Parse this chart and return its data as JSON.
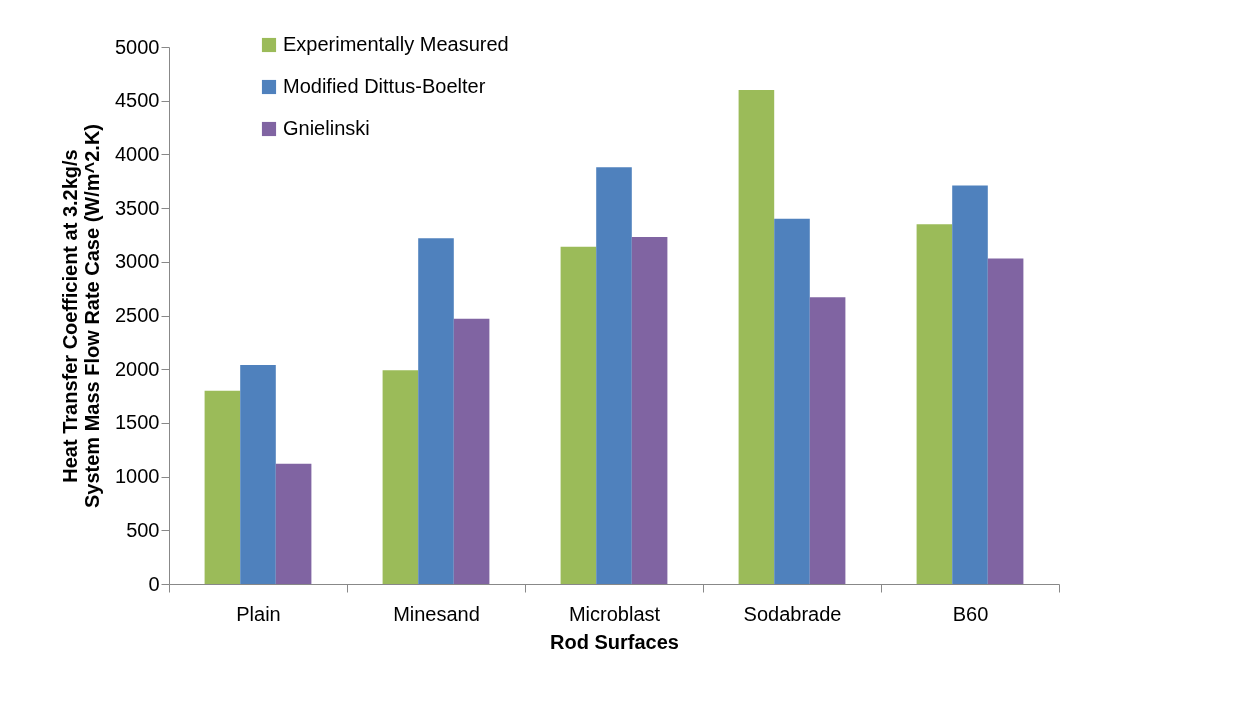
{
  "chart_data": {
    "type": "bar",
    "xlabel": "Rod Surfaces",
    "ylabel": "Heat Transfer Coefficient at 3.2kg/s\nSystem Mass Flow Rate Case (W/m^2.K)",
    "categories": [
      "Plain",
      "Minesand",
      "Microblast",
      "Sodabrade",
      "B60"
    ],
    "series": [
      {
        "name": "Experimentally Measured",
        "color": "#9bbb59",
        "values": [
          1800,
          1990,
          3140,
          4600,
          3350
        ]
      },
      {
        "name": "Modified Dittus-Boelter",
        "color": "#4f81bd",
        "values": [
          2040,
          3220,
          3880,
          3400,
          3710
        ]
      },
      {
        "name": "Gnielinski",
        "color": "#8064a2",
        "values": [
          1120,
          2470,
          3230,
          2670,
          3030
        ]
      }
    ],
    "ylim": [
      0,
      5000
    ],
    "yticks": [
      0,
      500,
      1000,
      1500,
      2000,
      2500,
      3000,
      3500,
      4000,
      4500,
      5000
    ],
    "grid": false,
    "legend": "top left"
  }
}
